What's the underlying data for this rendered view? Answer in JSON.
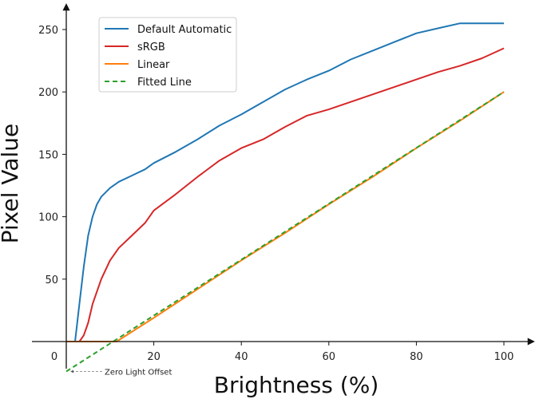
{
  "chart_data": {
    "type": "line",
    "xlabel": "Brightness (%)",
    "ylabel": "Pixel Value",
    "xlim": [
      0,
      100
    ],
    "ylim": [
      -22,
      262
    ],
    "x_ticks": [
      0,
      20,
      40,
      60,
      80,
      100
    ],
    "y_ticks": [
      50,
      100,
      150,
      200,
      250
    ],
    "x_tick_labels": [
      "0",
      "20",
      "40",
      "60",
      "80",
      "100"
    ],
    "y_tick_labels": [
      "50",
      "100",
      "150",
      "200",
      "250"
    ],
    "grid": false,
    "legend_position": "top-left",
    "series": [
      {
        "name": "Default Automatic",
        "color": "#1f77b4",
        "style": "solid",
        "x": [
          0,
          1,
          2,
          3,
          4,
          5,
          6,
          7,
          8,
          10,
          12,
          15,
          18,
          20,
          25,
          30,
          35,
          40,
          45,
          50,
          55,
          60,
          65,
          70,
          75,
          80,
          85,
          90,
          95,
          100
        ],
        "y": [
          0,
          0,
          0,
          30,
          60,
          85,
          100,
          110,
          116,
          123,
          128,
          133,
          138,
          143,
          152,
          162,
          173,
          182,
          192,
          202,
          210,
          217,
          226,
          233,
          240,
          247,
          251,
          255,
          255,
          255
        ]
      },
      {
        "name": "sRGB",
        "color": "#d62728",
        "style": "solid",
        "x": [
          0,
          2,
          3,
          4,
          5,
          6,
          8,
          10,
          12,
          15,
          18,
          20,
          25,
          30,
          35,
          40,
          45,
          50,
          55,
          60,
          65,
          70,
          75,
          80,
          85,
          90,
          95,
          100
        ],
        "y": [
          0,
          0,
          0,
          5,
          15,
          30,
          50,
          65,
          75,
          85,
          95,
          105,
          118,
          132,
          145,
          155,
          162,
          172,
          181,
          186,
          192,
          198,
          204,
          210,
          216,
          221,
          227,
          235
        ]
      },
      {
        "name": "Linear",
        "color": "#ff7f0e",
        "style": "solid",
        "x": [
          0,
          11,
          11.5,
          20,
          30,
          40,
          50,
          60,
          70,
          80,
          90,
          100
        ],
        "y": [
          0,
          0,
          0,
          19,
          42,
          65,
          87,
          110,
          132,
          155,
          177,
          200
        ]
      },
      {
        "name": "Fitted Line",
        "color": "#2ca02c",
        "style": "dashed",
        "x": [
          0,
          100
        ],
        "y": [
          -24,
          200
        ]
      }
    ],
    "annotations": [
      {
        "text": "Zero Light Offset",
        "x": 0,
        "y": -24
      }
    ]
  }
}
